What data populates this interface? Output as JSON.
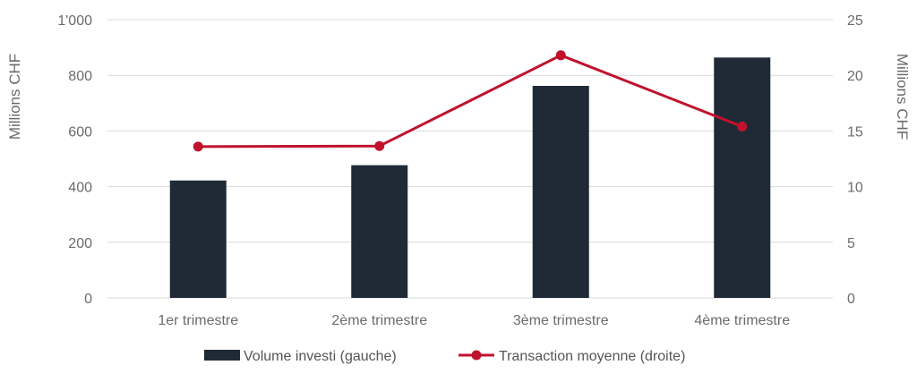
{
  "chart_data": {
    "type": "bar",
    "categories": [
      "1er trimestre",
      "2ème trimestre",
      "3ème trimestre",
      "4ème trimestre"
    ],
    "series": [
      {
        "name": "Volume investi (gauche)",
        "type": "bar",
        "axis": "left",
        "color": "#1f2a36",
        "values": [
          422,
          477,
          762,
          864
        ]
      },
      {
        "name": "Transaction moyenne (droite)",
        "type": "line",
        "axis": "right",
        "color": "#c0122c",
        "values": [
          13.6,
          13.65,
          21.8,
          15.4
        ]
      }
    ],
    "ylabel": "Millions CHF",
    "y2label": "Millions CHF",
    "ylim": [
      0,
      1000
    ],
    "y2lim": [
      0,
      25
    ],
    "yticks": [
      "0",
      "200",
      "400",
      "600",
      "800",
      "1'000"
    ],
    "y2ticks": [
      "0",
      "5",
      "10",
      "15",
      "20",
      "25"
    ],
    "grid": true,
    "legend_position": "bottom"
  }
}
